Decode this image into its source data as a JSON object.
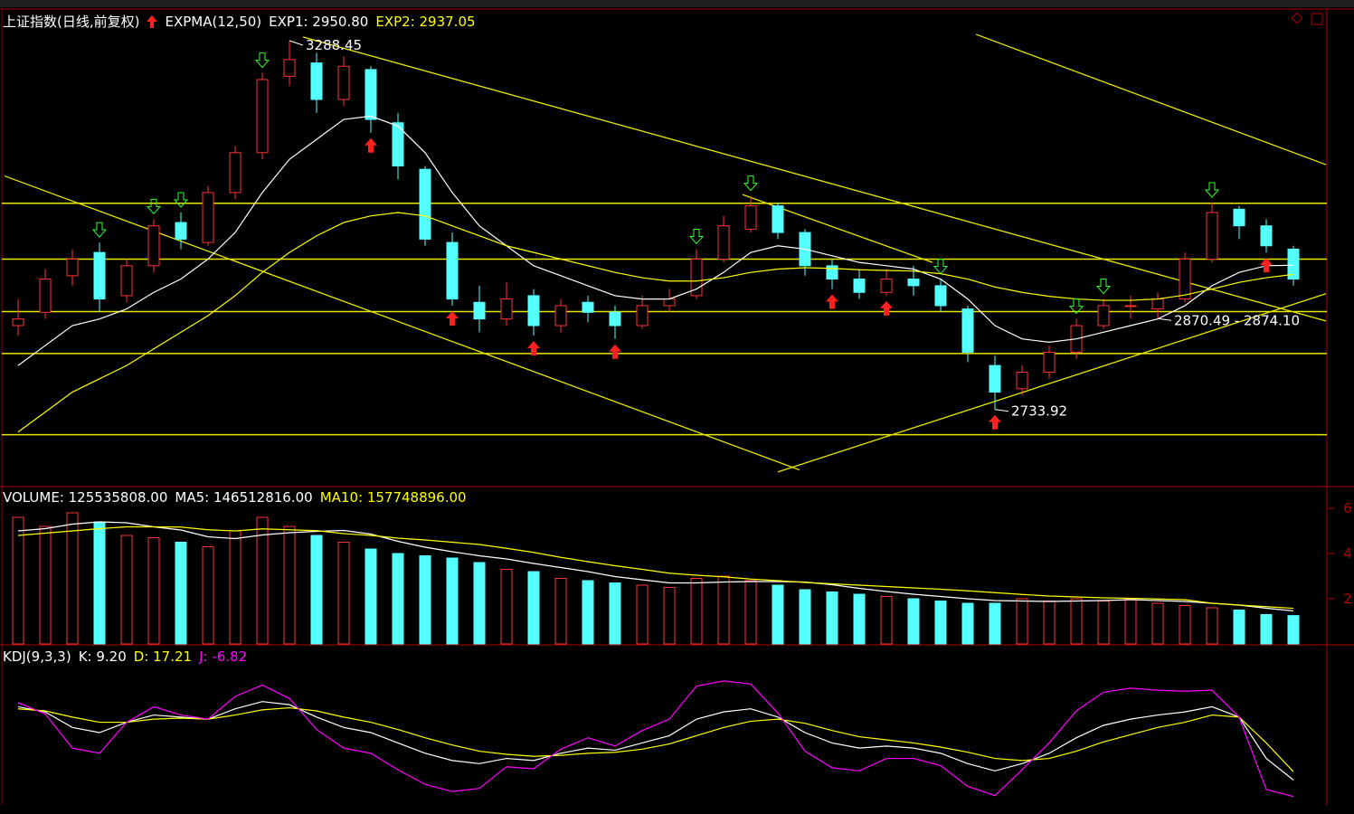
{
  "chart_data": [
    {
      "type": "candlestick",
      "title": "上证指数(日线,前复权)",
      "indicator": "EXPMA(12,50)",
      "ylim": [
        2622,
        3336
      ],
      "ohlc": [
        [
          2860,
          2900,
          2845,
          2870
        ],
        [
          2880,
          2945,
          2870,
          2930
        ],
        [
          2935,
          2975,
          2920,
          2960
        ],
        [
          2970,
          2985,
          2880,
          2900
        ],
        [
          2905,
          2960,
          2895,
          2950
        ],
        [
          2950,
          3020,
          2940,
          3010
        ],
        [
          3015,
          3030,
          2975,
          2990
        ],
        [
          2985,
          3070,
          2980,
          3060
        ],
        [
          3060,
          3130,
          3050,
          3120
        ],
        [
          3120,
          3240,
          3110,
          3230
        ],
        [
          3235,
          3288.45,
          3220,
          3260
        ],
        [
          3255,
          3270,
          3180,
          3200
        ],
        [
          3200,
          3265,
          3190,
          3250
        ],
        [
          3245,
          3250,
          3150,
          3170
        ],
        [
          3165,
          3180,
          3080,
          3100
        ],
        [
          3095,
          3100,
          2980,
          2990
        ],
        [
          2985,
          3000,
          2890,
          2900
        ],
        [
          2895,
          2920,
          2850,
          2870
        ],
        [
          2870,
          2925,
          2860,
          2900
        ],
        [
          2905,
          2915,
          2845,
          2860
        ],
        [
          2860,
          2900,
          2850,
          2890
        ],
        [
          2895,
          2905,
          2865,
          2880
        ],
        [
          2880,
          2890,
          2840,
          2860
        ],
        [
          2860,
          2905,
          2855,
          2890
        ],
        [
          2890,
          2915,
          2880,
          2900
        ],
        [
          2905,
          2975,
          2900,
          2960
        ],
        [
          2960,
          3025,
          2955,
          3010
        ],
        [
          3005,
          3055,
          3000,
          3040
        ],
        [
          3040,
          3045,
          2990,
          3000
        ],
        [
          3000,
          3005,
          2935,
          2950
        ],
        [
          2950,
          2960,
          2915,
          2930
        ],
        [
          2930,
          2945,
          2900,
          2910
        ],
        [
          2910,
          2945,
          2905,
          2930
        ],
        [
          2930,
          2950,
          2905,
          2920
        ],
        [
          2920,
          2930,
          2880,
          2890
        ],
        [
          2885,
          2890,
          2805,
          2820
        ],
        [
          2800,
          2815,
          2733.92,
          2760
        ],
        [
          2765,
          2800,
          2755,
          2790
        ],
        [
          2790,
          2830,
          2780,
          2820
        ],
        [
          2820,
          2870,
          2810,
          2860
        ],
        [
          2860,
          2900,
          2855,
          2890
        ],
        [
          2890,
          2905,
          2870,
          2890
        ],
        [
          2885,
          2910,
          2870.49,
          2900
        ],
        [
          2900,
          2970,
          2895,
          2960
        ],
        [
          2960,
          3045,
          2955,
          3030
        ],
        [
          3035,
          3040,
          2990,
          3010
        ],
        [
          3010,
          3020,
          2970,
          2980
        ],
        [
          2975,
          2980,
          2920,
          2930
        ]
      ],
      "series": [
        {
          "label": "EXP1: 2950.80",
          "color": "#ffffff",
          "values": [
            2800,
            2830,
            2860,
            2870,
            2885,
            2910,
            2930,
            2960,
            3000,
            3060,
            3110,
            3140,
            3170,
            3175,
            3160,
            3120,
            3060,
            3010,
            2980,
            2950,
            2935,
            2920,
            2905,
            2900,
            2900,
            2915,
            2940,
            2970,
            2980,
            2975,
            2965,
            2955,
            2950,
            2945,
            2930,
            2900,
            2860,
            2840,
            2835,
            2840,
            2850,
            2860,
            2870,
            2890,
            2920,
            2940,
            2950,
            2950.8
          ]
        },
        {
          "label": "EXP2: 2937.05",
          "color": "#ffff00",
          "values": [
            2700,
            2730,
            2760,
            2780,
            2800,
            2825,
            2850,
            2875,
            2905,
            2940,
            2970,
            2995,
            3015,
            3025,
            3030,
            3025,
            3010,
            2995,
            2980,
            2970,
            2960,
            2950,
            2940,
            2932,
            2927,
            2927,
            2932,
            2940,
            2945,
            2947,
            2946,
            2944,
            2943,
            2942,
            2938,
            2930,
            2918,
            2910,
            2904,
            2900,
            2898,
            2898,
            2900,
            2906,
            2915,
            2925,
            2932,
            2937.05
          ]
        }
      ],
      "levels": [
        3044,
        2960,
        2881,
        2818,
        2696
      ],
      "trendlines": [
        [
          -0.5,
          3085,
          28.8,
          2643
        ],
        [
          10.5,
          3294,
          48.2,
          2867
        ],
        [
          35.3,
          3298,
          48.2,
          3102
        ],
        [
          28,
          2640,
          48.2,
          2908
        ],
        [
          26.7,
          3057,
          33.7,
          2955
        ]
      ],
      "buy": [
        13,
        16,
        19,
        22,
        30,
        32,
        36,
        46
      ],
      "sell": [
        3,
        5,
        6,
        9,
        25,
        27,
        34,
        39,
        40,
        44
      ],
      "annotations": [
        {
          "label": "3288.45",
          "value": 3288.45
        },
        {
          "label": "2733.92",
          "value": 2733.92
        },
        {
          "label": "2870.49 - 2874.10",
          "values": [
            2870.49,
            2874.1
          ]
        }
      ]
    },
    {
      "type": "bar",
      "ylim": [
        0,
        680000000
      ],
      "yticks": [
        {
          "value": 200000000,
          "label": "2"
        },
        {
          "value": 400000000,
          "label": "4"
        },
        {
          "value": 600000000,
          "label": "6"
        }
      ],
      "label": "VOLUME: 125535808.00",
      "values": [
        560000000,
        520000000,
        580000000,
        540000000,
        480000000,
        470000000,
        450000000,
        430000000,
        500000000,
        560000000,
        520000000,
        480000000,
        450000000,
        420000000,
        400000000,
        390000000,
        380000000,
        360000000,
        330000000,
        320000000,
        290000000,
        280000000,
        270000000,
        260000000,
        250000000,
        290000000,
        300000000,
        280000000,
        260000000,
        240000000,
        230000000,
        220000000,
        210000000,
        200000000,
        190000000,
        180000000,
        180000000,
        200000000,
        190000000,
        200000000,
        190000000,
        200000000,
        180000000,
        170000000,
        160000000,
        150000000,
        130000000,
        125535808
      ],
      "series": [
        {
          "label": "MA5: 146512816.00",
          "color": "#ffffff",
          "values": [
            500000000,
            510000000,
            530000000,
            540000000,
            536000000,
            518000000,
            504000000,
            474000000,
            466000000,
            482000000,
            492000000,
            498000000,
            502000000,
            486000000,
            454000000,
            428000000,
            408000000,
            390000000,
            376000000,
            356000000,
            338000000,
            320000000,
            298000000,
            284000000,
            270000000,
            270000000,
            274000000,
            276000000,
            276000000,
            274000000,
            262000000,
            246000000,
            232000000,
            220000000,
            210000000,
            200000000,
            192000000,
            190000000,
            188000000,
            190000000,
            192000000,
            196000000,
            192000000,
            188000000,
            180000000,
            172000000,
            158000000,
            146512816
          ]
        },
        {
          "label": "MA10: 157748896.00",
          "color": "#ffff00",
          "values": [
            480000000,
            490000000,
            500000000,
            510000000,
            518000000,
            518000000,
            517000000,
            505000000,
            500000000,
            509000000,
            505000000,
            501000000,
            488000000,
            480000000,
            468000000,
            460000000,
            450000000,
            440000000,
            423000000,
            405000000,
            383000000,
            364000000,
            346000000,
            330000000,
            313000000,
            304000000,
            297000000,
            287000000,
            280000000,
            272000000,
            266000000,
            260000000,
            254000000,
            248000000,
            242000000,
            235000000,
            227000000,
            219000000,
            212000000,
            208000000,
            204000000,
            202000000,
            199000000,
            196000000,
            180000000,
            172000000,
            165000000,
            157748896
          ]
        }
      ]
    },
    {
      "type": "line",
      "title": "KDJ(9,3,3)",
      "ylim": [
        -15,
        125
      ],
      "series": [
        {
          "label": "K: 9.20",
          "color": "#ffffff",
          "values": [
            80,
            75,
            60,
            55,
            65,
            72,
            70,
            68,
            78,
            85,
            82,
            70,
            60,
            55,
            45,
            35,
            28,
            25,
            30,
            28,
            35,
            40,
            38,
            45,
            52,
            68,
            75,
            78,
            70,
            55,
            45,
            40,
            42,
            40,
            35,
            25,
            18,
            25,
            35,
            50,
            62,
            68,
            72,
            75,
            80,
            70,
            30,
            9.2
          ]
        },
        {
          "label": "D: 17.21",
          "color": "#ffff00",
          "values": [
            78,
            76,
            70,
            65,
            65,
            68,
            69,
            68,
            72,
            77,
            79,
            76,
            70,
            65,
            58,
            50,
            43,
            37,
            34,
            32,
            33,
            35,
            36,
            39,
            44,
            52,
            60,
            66,
            68,
            64,
            57,
            51,
            48,
            45,
            41,
            36,
            30,
            28,
            30,
            37,
            46,
            53,
            60,
            65,
            72,
            70,
            45,
            17.21
          ]
        },
        {
          "label": "J: -6.82",
          "color": "#ff00ff",
          "values": [
            84,
            73,
            40,
            35,
            65,
            80,
            72,
            68,
            90,
            101,
            88,
            58,
            40,
            35,
            19,
            5,
            -2,
            1,
            22,
            20,
            39,
            50,
            42,
            57,
            68,
            100,
            105,
            102,
            74,
            37,
            21,
            18,
            30,
            30,
            23,
            3,
            -6,
            19,
            45,
            76,
            94,
            98,
            96,
            95,
            96,
            70,
            0,
            -6.82
          ]
        }
      ]
    }
  ]
}
